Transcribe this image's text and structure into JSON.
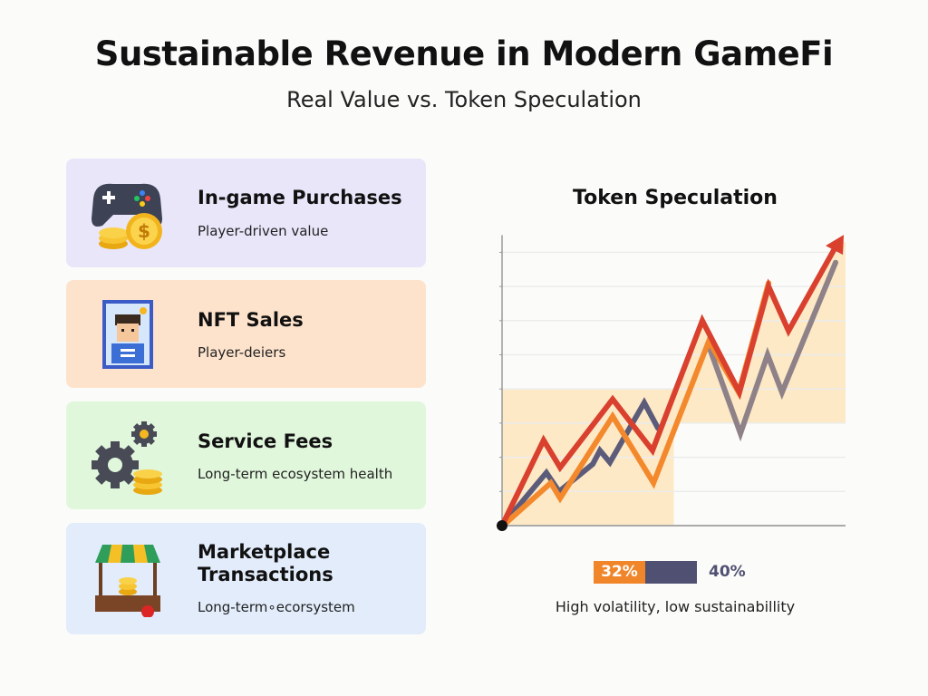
{
  "header": {
    "title": "Sustainable Revenue in Modern GameFi",
    "subtitle": "Real Value vs. Token Speculation"
  },
  "cards": [
    {
      "name": "In-game Purchases",
      "desc": "Player-driven value",
      "icon": "gamepad-coins-icon",
      "color": "#e9e6fa"
    },
    {
      "name": "NFT Sales",
      "desc": "Player-deiers",
      "icon": "nft-character-card-icon",
      "color": "#fde3cc"
    },
    {
      "name": "Service Fees",
      "desc": "Long-term ecosystem health",
      "icon": "gears-coins-icon",
      "color": "#e1f7dc"
    },
    {
      "name": "Marketplace Transactions",
      "desc": "Long-term∘ecorsystem",
      "icon": "market-stall-icon",
      "color": "#e2ecfb"
    }
  ],
  "chart_data": {
    "type": "line",
    "title": "Token Speculation",
    "xlim": [
      0,
      100
    ],
    "ylim": [
      0,
      8.5
    ],
    "grid": true,
    "series": [
      {
        "name": "red",
        "color": "#d9402e",
        "x": [
          0,
          12.1,
          16.9,
          32.2,
          43.8,
          58.3,
          69.1,
          77.6,
          83.4,
          97.9
        ],
        "y": [
          0,
          2.5,
          1.7,
          3.7,
          2.2,
          6.0,
          3.9,
          7.0,
          5.7,
          8.3
        ]
      },
      {
        "name": "orange",
        "color": "#f3892c",
        "x": [
          0.8,
          14.2,
          16.9,
          32.2,
          44.1,
          60.2,
          68.9,
          77.6
        ],
        "y": [
          0.05,
          1.25,
          0.8,
          3.2,
          1.25,
          5.4,
          3.9,
          7.1
        ]
      },
      {
        "name": "navy-gray",
        "color": "#5c5c7a",
        "x": [
          0,
          12.9,
          16.6,
          26.4,
          28.5,
          31.4,
          41.4,
          45.4
        ],
        "y": [
          0,
          1.55,
          1.0,
          1.8,
          2.2,
          1.85,
          3.6,
          2.85
        ]
      },
      {
        "name": "gray",
        "color": "#8e8288",
        "x": [
          60.4,
          69.4,
          77.3,
          81.5,
          97.1
        ],
        "y": [
          5.2,
          2.7,
          5.0,
          3.9,
          7.7
        ]
      }
    ],
    "bar": {
      "value1": "32%",
      "value2": "40%"
    },
    "caption": "High volatility, low sustainabillity"
  }
}
